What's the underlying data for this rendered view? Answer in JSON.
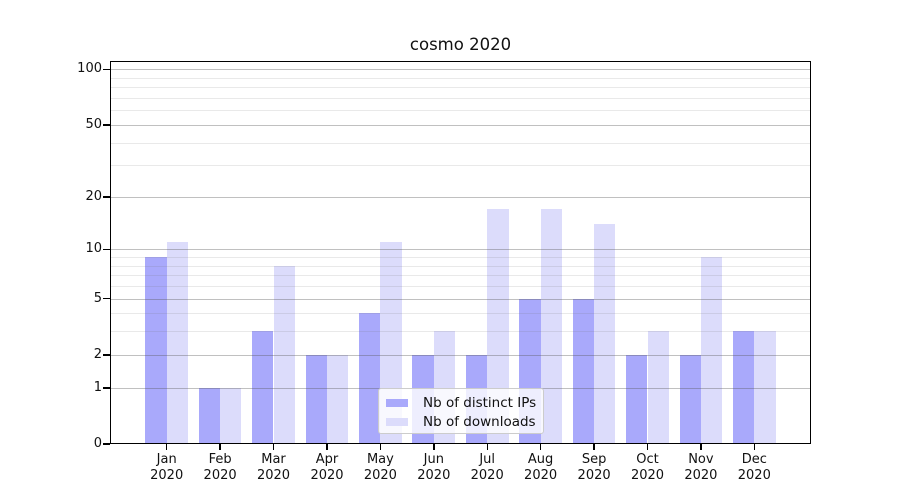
{
  "chart_data": {
    "type": "bar",
    "title": "cosmo 2020",
    "categories": [
      "Jan",
      "Feb",
      "Mar",
      "Apr",
      "May",
      "Jun",
      "Jul",
      "Aug",
      "Sep",
      "Oct",
      "Nov",
      "Dec"
    ],
    "category_year": "2020",
    "series": [
      {
        "name": "Nb of distinct IPs",
        "color": "#a9a9fb",
        "values": [
          9,
          1,
          3,
          2,
          4,
          2,
          2,
          5,
          5,
          2,
          2,
          3
        ]
      },
      {
        "name": "Nb of downloads",
        "color": "#dcdcfb",
        "values": [
          11,
          1,
          8,
          2,
          11,
          3,
          17,
          17,
          14,
          3,
          9,
          3
        ]
      }
    ],
    "yscale": "log1p",
    "ylim": [
      0,
      111
    ],
    "y_major_ticks": [
      0,
      1,
      2,
      5,
      10,
      20,
      50,
      100
    ],
    "y_minor_gridlines": [
      3,
      4,
      6,
      7,
      8,
      9,
      30,
      40,
      60,
      70,
      80,
      90
    ],
    "grid": "on",
    "legend_position": "lower center",
    "colors": {
      "background": "#ffffff",
      "spine": "#000000",
      "grid_major": "#bcbcbc",
      "grid_minor": "#ececec",
      "text": "#111111"
    }
  }
}
